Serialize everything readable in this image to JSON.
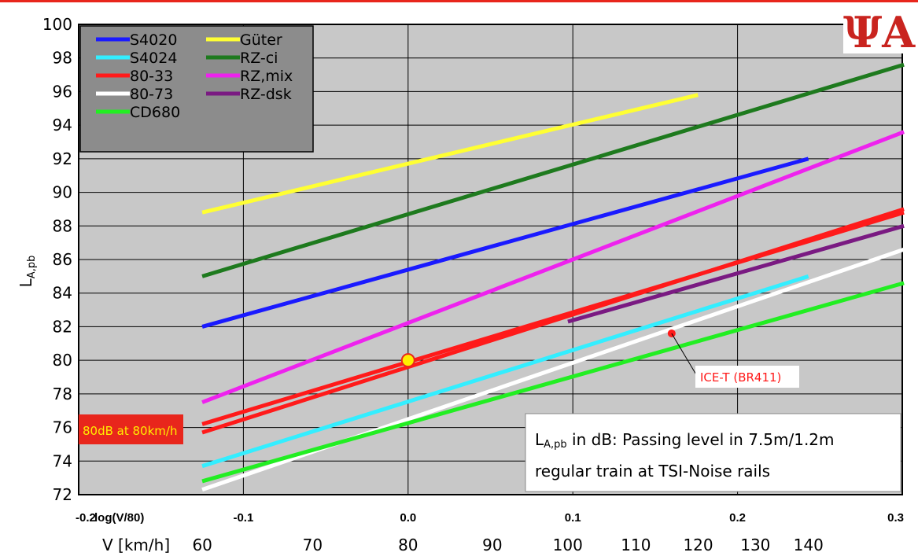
{
  "colors": {
    "top_line": "#e8261c",
    "plot_bg": "#c8c8c8",
    "grid": "#000000",
    "legend_bg": "#8c8c8c",
    "note_bg": "#ffffff",
    "logo_red": "#c9241f"
  },
  "logo": {
    "icon": "psi-a-logo",
    "text": "ΨA"
  },
  "chart_data": {
    "type": "line",
    "title": "",
    "xlabel_top": "log(V/80)",
    "xlabel_bottom": "V [km/h]",
    "ylabel_main": "L",
    "ylabel_sub": "A,pb",
    "xlim": [
      -0.2,
      0.3
    ],
    "ylim": [
      72,
      100
    ],
    "x_ticks": [
      "-0.2",
      "-0.1",
      "0.0",
      "0.1",
      "0.2",
      "0.3"
    ],
    "x_tick_values": [
      -0.2,
      -0.1,
      0.0,
      0.1,
      0.2,
      0.3
    ],
    "y_ticks": [
      72,
      74,
      76,
      78,
      80,
      82,
      84,
      86,
      88,
      90,
      92,
      94,
      96,
      98,
      100
    ],
    "speed_ticks": [
      60,
      70,
      80,
      90,
      100,
      110,
      120,
      130,
      140
    ],
    "grid": true,
    "legend_position": "top-left",
    "legend_columns": 2,
    "series": [
      {
        "name": "S4020",
        "color": "#1a1aff",
        "x": [
          -0.125,
          0.243
        ],
        "y": [
          82.0,
          92.0
        ]
      },
      {
        "name": "S4024",
        "color": "#33eeff",
        "x": [
          -0.125,
          0.243
        ],
        "y": [
          73.7,
          85.0
        ]
      },
      {
        "name": "80-33",
        "color": "#ff1a1a",
        "x": [
          -0.125,
          0.301
        ],
        "y": [
          75.7,
          89.0
        ]
      },
      {
        "name": "80-33",
        "color": "#ff1a1a",
        "x": [
          -0.125,
          0.301
        ],
        "y": [
          76.2,
          88.8
        ]
      },
      {
        "name": "80-73",
        "color": "#ffffff",
        "x": [
          -0.125,
          0.301
        ],
        "y": [
          72.3,
          86.6
        ]
      },
      {
        "name": "CD680",
        "color": "#22ee22",
        "x": [
          -0.125,
          0.301
        ],
        "y": [
          72.8,
          84.6
        ]
      },
      {
        "name": "Güter",
        "color": "#ffff33",
        "x": [
          -0.125,
          0.176
        ],
        "y": [
          88.8,
          95.8
        ]
      },
      {
        "name": "RZ-ci",
        "color": "#1e7a1e",
        "x": [
          -0.125,
          0.301
        ],
        "y": [
          85.0,
          97.6
        ]
      },
      {
        "name": "RZ,mix",
        "color": "#ee22ee",
        "x": [
          -0.125,
          0.301
        ],
        "y": [
          77.5,
          93.6
        ]
      },
      {
        "name": "RZ-dsk",
        "color": "#7a1a82",
        "x": [
          0.097,
          0.301
        ],
        "y": [
          82.3,
          88.0
        ]
      }
    ],
    "legend": [
      {
        "label": "S4020",
        "color": "#1a1aff"
      },
      {
        "label": "S4024",
        "color": "#33eeff"
      },
      {
        "label": "80-33",
        "color": "#ff1a1a"
      },
      {
        "label": "80-73",
        "color": "#ffffff"
      },
      {
        "label": "CD680",
        "color": "#22ee22"
      },
      {
        "label": "Güter",
        "color": "#ffff33"
      },
      {
        "label": "RZ-ci",
        "color": "#1e7a1e"
      },
      {
        "label": "RZ,mix",
        "color": "#ee22ee"
      },
      {
        "label": "RZ-dsk",
        "color": "#7a1a82"
      }
    ],
    "reference_point": {
      "x": 0.0,
      "y": 80.0,
      "color": "#ffee00"
    },
    "ice_point": {
      "x": 0.16,
      "y": 81.6,
      "label": "ICE-T (BR411)",
      "color": "#ff1a1a"
    },
    "annotations": {
      "left_label": "80dB at 80km/h",
      "note_main": "L",
      "note_sub": "A,pb",
      "note_line1": " in dB: Passing level in 7.5m/1.2m",
      "note_line2": "regular train at TSI-Noise rails"
    }
  }
}
